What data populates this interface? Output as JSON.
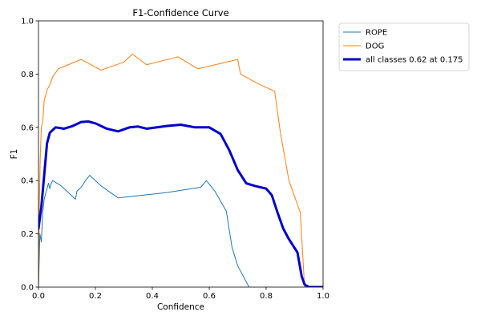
{
  "chart_data": {
    "type": "line",
    "title": "F1-Confidence Curve",
    "xlabel": "Confidence",
    "ylabel": "F1",
    "xlim": [
      0,
      1
    ],
    "ylim": [
      0,
      1
    ],
    "xticks": [
      "0.0",
      "0.2",
      "0.4",
      "0.6",
      "0.8",
      "1.0"
    ],
    "yticks": [
      "0.0",
      "0.2",
      "0.4",
      "0.6",
      "0.8",
      "1.0"
    ],
    "grid": false,
    "legend_position": "outside-top-right",
    "series": [
      {
        "name": "ROPE",
        "color": "#1f77b4",
        "linewidth": 1,
        "points": [
          [
            0.0,
            0.0
          ],
          [
            0.005,
            0.2
          ],
          [
            0.01,
            0.17
          ],
          [
            0.015,
            0.28
          ],
          [
            0.02,
            0.33
          ],
          [
            0.03,
            0.37
          ],
          [
            0.035,
            0.39
          ],
          [
            0.04,
            0.37
          ],
          [
            0.045,
            0.39
          ],
          [
            0.05,
            0.4
          ],
          [
            0.08,
            0.38
          ],
          [
            0.12,
            0.34
          ],
          [
            0.13,
            0.33
          ],
          [
            0.135,
            0.36
          ],
          [
            0.15,
            0.375
          ],
          [
            0.165,
            0.4
          ],
          [
            0.18,
            0.42
          ],
          [
            0.22,
            0.38
          ],
          [
            0.28,
            0.335
          ],
          [
            0.45,
            0.355
          ],
          [
            0.57,
            0.375
          ],
          [
            0.59,
            0.4
          ],
          [
            0.62,
            0.36
          ],
          [
            0.66,
            0.285
          ],
          [
            0.68,
            0.15
          ],
          [
            0.7,
            0.08
          ],
          [
            0.74,
            0.0
          ]
        ]
      },
      {
        "name": "DOG",
        "color": "#ff7f0e",
        "linewidth": 1,
        "points": [
          [
            0.0,
            0.0
          ],
          [
            0.003,
            0.3
          ],
          [
            0.006,
            0.48
          ],
          [
            0.01,
            0.6
          ],
          [
            0.015,
            0.62
          ],
          [
            0.02,
            0.7
          ],
          [
            0.03,
            0.74
          ],
          [
            0.04,
            0.76
          ],
          [
            0.05,
            0.79
          ],
          [
            0.07,
            0.82
          ],
          [
            0.15,
            0.855
          ],
          [
            0.22,
            0.815
          ],
          [
            0.3,
            0.845
          ],
          [
            0.33,
            0.875
          ],
          [
            0.38,
            0.835
          ],
          [
            0.49,
            0.865
          ],
          [
            0.56,
            0.82
          ],
          [
            0.7,
            0.855
          ],
          [
            0.71,
            0.8
          ],
          [
            0.77,
            0.765
          ],
          [
            0.83,
            0.735
          ],
          [
            0.85,
            0.58
          ],
          [
            0.88,
            0.4
          ],
          [
            0.92,
            0.28
          ],
          [
            0.935,
            0.0
          ]
        ]
      },
      {
        "name": "all classes 0.62 at 0.175",
        "color": "#0000cc",
        "linewidth": 3,
        "points": [
          [
            0.0,
            0.22
          ],
          [
            0.01,
            0.3
          ],
          [
            0.02,
            0.42
          ],
          [
            0.03,
            0.54
          ],
          [
            0.04,
            0.58
          ],
          [
            0.06,
            0.6
          ],
          [
            0.09,
            0.595
          ],
          [
            0.12,
            0.605
          ],
          [
            0.15,
            0.62
          ],
          [
            0.175,
            0.622
          ],
          [
            0.2,
            0.615
          ],
          [
            0.24,
            0.595
          ],
          [
            0.28,
            0.585
          ],
          [
            0.32,
            0.6
          ],
          [
            0.35,
            0.603
          ],
          [
            0.38,
            0.595
          ],
          [
            0.45,
            0.605
          ],
          [
            0.5,
            0.61
          ],
          [
            0.55,
            0.6
          ],
          [
            0.6,
            0.6
          ],
          [
            0.64,
            0.575
          ],
          [
            0.67,
            0.515
          ],
          [
            0.7,
            0.44
          ],
          [
            0.73,
            0.39
          ],
          [
            0.76,
            0.38
          ],
          [
            0.8,
            0.37
          ],
          [
            0.82,
            0.345
          ],
          [
            0.84,
            0.28
          ],
          [
            0.86,
            0.22
          ],
          [
            0.88,
            0.18
          ],
          [
            0.91,
            0.13
          ],
          [
            0.925,
            0.04
          ],
          [
            0.935,
            0.01
          ],
          [
            0.95,
            0.0
          ],
          [
            1.0,
            0.0
          ]
        ]
      }
    ]
  }
}
